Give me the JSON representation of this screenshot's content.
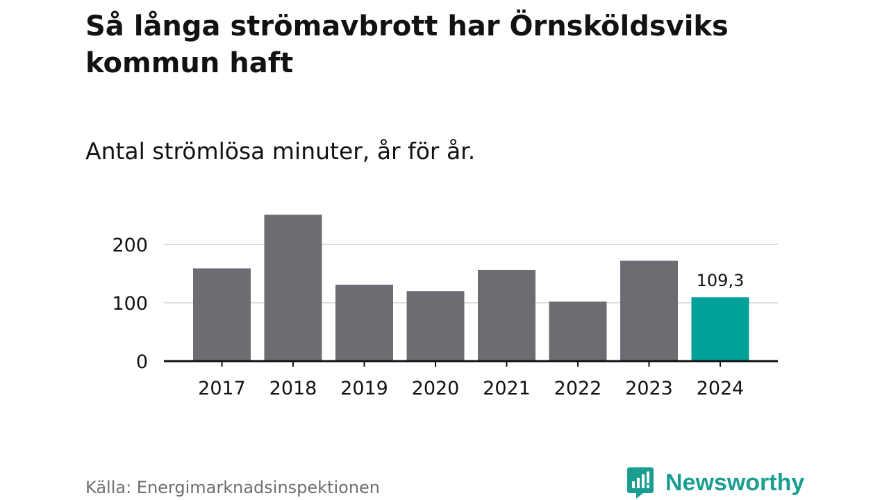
{
  "title": "Så långa strömavbrott har Örnsköldsviks kommun haft",
  "subtitle": "Antal strömlösa minuter, år för år.",
  "source": "Källa: Energimarknadsinspektionen",
  "brand": {
    "name": "Newsworthy",
    "icon": "newsworthy-logo-icon",
    "color": "#1a9e91"
  },
  "colors": {
    "bar": "#6d6c72",
    "highlight": "#00a198",
    "grid": "#dcdcdc",
    "axis": "#121212",
    "text": "#121212"
  },
  "chart_data": {
    "type": "bar",
    "title": "Så långa strömavbrott har Örnsköldsviks kommun haft",
    "subtitle": "Antal strömlösa minuter, år för år.",
    "xlabel": "",
    "ylabel": "",
    "categories": [
      "2017",
      "2018",
      "2019",
      "2020",
      "2021",
      "2022",
      "2023",
      "2024"
    ],
    "values": [
      159,
      251,
      131,
      120,
      156,
      102,
      172,
      109.3
    ],
    "highlight_index": 7,
    "data_label": "109,3",
    "yticks": [
      0,
      100,
      200
    ],
    "ylim": [
      0,
      260
    ],
    "grid": true
  }
}
